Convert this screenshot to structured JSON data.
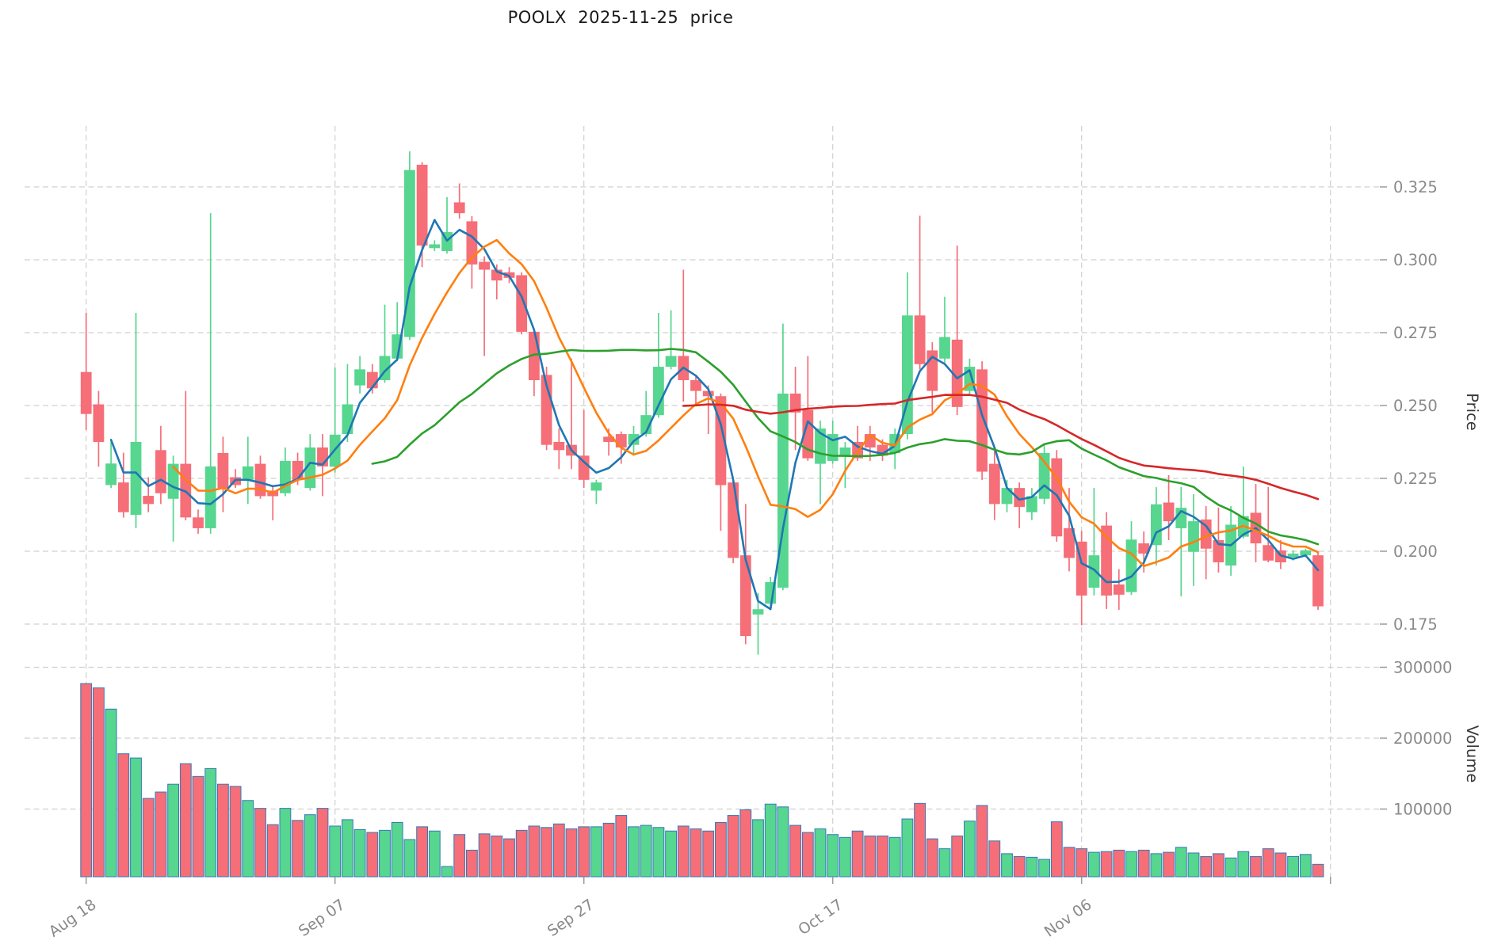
{
  "header": {
    "title": "POOLX  2025-11-25  price"
  },
  "axes": {
    "price_label": "Price",
    "volume_label": "Volume"
  },
  "colors": {
    "up": "#56d68f",
    "down": "#f56e78",
    "volume_edge": "#3579b8",
    "grid": "#d0d0d0",
    "tick_text": "#8a8a8a",
    "axis_label_text": "#3a3a3a",
    "ma_colors": [
      "#1f77b4",
      "#ff7f0e",
      "#2ca02c",
      "#d62728"
    ]
  },
  "chart_data": {
    "type": "candlestick",
    "title": "POOLX  2025-11-25  price",
    "panes": [
      "price",
      "volume"
    ],
    "ylabel_price": "Price",
    "ylabel_volume": "Volume",
    "grid": true,
    "price_tick_labels": [
      "0.175",
      "0.200",
      "0.225",
      "0.250",
      "0.275",
      "0.300",
      "0.325"
    ],
    "price_ticks": [
      0.175,
      0.2,
      0.225,
      0.25,
      0.275,
      0.3,
      0.325
    ],
    "volume_tick_labels": [
      "100000",
      "200000",
      "300000"
    ],
    "volume_ticks": [
      100000,
      200000,
      300000
    ],
    "x_tick_labels": [
      "Aug 18",
      "Sep 07",
      "Sep 27",
      "Oct 17",
      "Nov 06"
    ],
    "x_tick_indices": [
      0,
      20,
      40,
      60,
      80
    ],
    "unlabeled_gridline_index": 100,
    "price_ylim": [
      0.156,
      0.346
    ],
    "volume_ylim": [
      0,
      307000
    ],
    "moving_averages": [
      {
        "name": "SMA-3",
        "window": 3,
        "color": "#1f77b4"
      },
      {
        "name": "SMA-8",
        "window": 8,
        "color": "#ff7f0e"
      },
      {
        "name": "SMA-24",
        "window": 24,
        "color": "#2ca02c"
      },
      {
        "name": "SMA-49",
        "window": 49,
        "color": "#d62728"
      }
    ],
    "dates": [
      "2025-08-18",
      "2025-08-19",
      "2025-08-20",
      "2025-08-21",
      "2025-08-22",
      "2025-08-23",
      "2025-08-24",
      "2025-08-25",
      "2025-08-26",
      "2025-08-27",
      "2025-08-28",
      "2025-08-29",
      "2025-08-30",
      "2025-08-31",
      "2025-09-01",
      "2025-09-02",
      "2025-09-03",
      "2025-09-04",
      "2025-09-05",
      "2025-09-06",
      "2025-09-07",
      "2025-09-08",
      "2025-09-09",
      "2025-09-10",
      "2025-09-11",
      "2025-09-12",
      "2025-09-13",
      "2025-09-14",
      "2025-09-15",
      "2025-09-16",
      "2025-09-17",
      "2025-09-18",
      "2025-09-19",
      "2025-09-20",
      "2025-09-21",
      "2025-09-22",
      "2025-09-23",
      "2025-09-24",
      "2025-09-25",
      "2025-09-26",
      "2025-09-27",
      "2025-09-28",
      "2025-09-29",
      "2025-09-30",
      "2025-10-01",
      "2025-10-02",
      "2025-10-03",
      "2025-10-04",
      "2025-10-05",
      "2025-10-06",
      "2025-10-07",
      "2025-10-08",
      "2025-10-09",
      "2025-10-10",
      "2025-10-11",
      "2025-10-12",
      "2025-10-13",
      "2025-10-14",
      "2025-10-15",
      "2025-10-16",
      "2025-10-17",
      "2025-10-18",
      "2025-10-19",
      "2025-10-20",
      "2025-10-21",
      "2025-10-22",
      "2025-10-23",
      "2025-10-24",
      "2025-10-25",
      "2025-10-26",
      "2025-10-27",
      "2025-10-28",
      "2025-10-29",
      "2025-10-30",
      "2025-10-31",
      "2025-11-01",
      "2025-11-02",
      "2025-11-03",
      "2025-11-04",
      "2025-11-05",
      "2025-11-06",
      "2025-11-07",
      "2025-11-08",
      "2025-11-09",
      "2025-11-10",
      "2025-11-11",
      "2025-11-12",
      "2025-11-13",
      "2025-11-14",
      "2025-11-15",
      "2025-11-16",
      "2025-11-17",
      "2025-11-18",
      "2025-11-19",
      "2025-11-20",
      "2025-11-21",
      "2025-11-22",
      "2025-11-23",
      "2025-11-24",
      "2025-11-25"
    ],
    "open": [
      0.2615,
      0.2504,
      0.2227,
      0.2236,
      0.2125,
      0.219,
      0.2347,
      0.218,
      0.23,
      0.2116,
      0.2079,
      0.2337,
      0.2254,
      0.2245,
      0.23,
      0.2208,
      0.2199,
      0.231,
      0.2217,
      0.2356,
      0.229,
      0.2402,
      0.2569,
      0.2615,
      0.2587,
      0.2661,
      0.2735,
      0.3326,
      0.304,
      0.303,
      0.3197,
      0.3132,
      0.2993,
      0.2966,
      0.2957,
      0.2947,
      0.2753,
      0.2605,
      0.2375,
      0.2365,
      0.2328,
      0.2208,
      0.2393,
      0.2402,
      0.2365,
      0.2402,
      0.2467,
      0.2633,
      0.267,
      0.2587,
      0.255,
      0.2532,
      0.2236,
      0.1986,
      0.1783,
      0.182,
      0.1875,
      0.2541,
      0.2485,
      0.23,
      0.231,
      0.2328,
      0.2375,
      0.2402,
      0.2365,
      0.2337,
      0.2402,
      0.2809,
      0.2689,
      0.2661,
      0.2726,
      0.255,
      0.2624,
      0.23,
      0.2162,
      0.2217,
      0.2134,
      0.218,
      0.2319,
      0.2079,
      0.2033,
      0.1875,
      0.2088,
      0.1886,
      0.186,
      0.2027,
      0.2021,
      0.2167,
      0.2079,
      0.1998,
      0.2109,
      0.2038,
      0.1951,
      0.205,
      0.2132,
      0.2021,
      0.2003,
      0.198,
      0.1986,
      0.1986
    ],
    "high": [
      0.2818,
      0.255,
      0.2375,
      0.2338,
      0.2818,
      0.2254,
      0.243,
      0.2328,
      0.255,
      0.2143,
      0.316,
      0.2393,
      0.2282,
      0.2393,
      0.2328,
      0.2227,
      0.2356,
      0.2338,
      0.2402,
      0.2402,
      0.263,
      0.2642,
      0.267,
      0.2642,
      0.2846,
      0.2855,
      0.3372,
      0.3335,
      0.3067,
      0.3215,
      0.3262,
      0.315,
      0.3012,
      0.2984,
      0.2975,
      0.2957,
      0.2762,
      0.2633,
      0.2421,
      0.2661,
      0.2485,
      0.2245,
      0.2421,
      0.2411,
      0.243,
      0.255,
      0.2818,
      0.2827,
      0.2966,
      0.2605,
      0.2569,
      0.2541,
      0.2254,
      0.2162,
      0.1857,
      0.1912,
      0.2781,
      0.2633,
      0.267,
      0.2448,
      0.2448,
      0.2375,
      0.243,
      0.243,
      0.2384,
      0.2421,
      0.2957,
      0.3151,
      0.2717,
      0.2873,
      0.3049,
      0.2661,
      0.2652,
      0.2347,
      0.2245,
      0.2236,
      0.2217,
      0.2365,
      0.2347,
      0.2217,
      0.207,
      0.2217,
      0.2134,
      0.1939,
      0.2103,
      0.2068,
      0.222,
      0.2261,
      0.222,
      0.2196,
      0.2155,
      0.215,
      0.2155,
      0.229,
      0.2231,
      0.222,
      0.2038,
      0.2003,
      0.2009,
      0.1998
    ],
    "low": [
      0.2416,
      0.229,
      0.2217,
      0.2115,
      0.2079,
      0.2134,
      0.2162,
      0.2033,
      0.2106,
      0.206,
      0.206,
      0.2134,
      0.2217,
      0.2162,
      0.218,
      0.2106,
      0.2189,
      0.2227,
      0.2208,
      0.2189,
      0.227,
      0.2375,
      0.2541,
      0.2541,
      0.2578,
      0.2652,
      0.2725,
      0.2975,
      0.303,
      0.3021,
      0.3141,
      0.2901,
      0.267,
      0.2864,
      0.292,
      0.2744,
      0.2532,
      0.2347,
      0.2282,
      0.2282,
      0.2217,
      0.2162,
      0.2328,
      0.23,
      0.2328,
      0.2393,
      0.2458,
      0.2624,
      0.2513,
      0.2504,
      0.2402,
      0.207,
      0.1959,
      0.1681,
      0.1645,
      0.1811,
      0.1866,
      0.2347,
      0.231,
      0.2162,
      0.23,
      0.2217,
      0.231,
      0.231,
      0.231,
      0.2282,
      0.2384,
      0.2624,
      0.2476,
      0.2642,
      0.2467,
      0.2532,
      0.2245,
      0.2107,
      0.2134,
      0.2079,
      0.2107,
      0.2162,
      0.2033,
      0.1931,
      0.1746,
      0.1848,
      0.1802,
      0.1799,
      0.185,
      0.1927,
      0.1951,
      0.2038,
      0.1845,
      0.1881,
      0.1904,
      0.1927,
      0.1916,
      0.2044,
      0.1962,
      0.1962,
      0.1939,
      0.1968,
      0.198,
      0.1799
    ],
    "close": [
      0.2471,
      0.2375,
      0.2301,
      0.2134,
      0.2375,
      0.2162,
      0.2199,
      0.23,
      0.2116,
      0.2079,
      0.2291,
      0.2217,
      0.2227,
      0.2291,
      0.2189,
      0.2189,
      0.231,
      0.2245,
      0.2356,
      0.2291,
      0.24,
      0.2504,
      0.2624,
      0.2559,
      0.267,
      0.2744,
      0.3308,
      0.3049,
      0.3053,
      0.3095,
      0.316,
      0.2984,
      0.2966,
      0.2929,
      0.2938,
      0.2753,
      0.2587,
      0.2365,
      0.2347,
      0.2328,
      0.2245,
      0.2236,
      0.2375,
      0.2356,
      0.2402,
      0.2467,
      0.2633,
      0.267,
      0.2587,
      0.255,
      0.2532,
      0.2227,
      0.1977,
      0.1709,
      0.1801,
      0.1894,
      0.2541,
      0.2476,
      0.2319,
      0.2421,
      0.2402,
      0.2356,
      0.2319,
      0.2356,
      0.2328,
      0.2402,
      0.2809,
      0.2642,
      0.255,
      0.2735,
      0.2495,
      0.2633,
      0.2273,
      0.2162,
      0.2217,
      0.2152,
      0.2189,
      0.2337,
      0.2051,
      0.1977,
      0.1848,
      0.1986,
      0.1848,
      0.1851,
      0.204,
      0.1992,
      0.2161,
      0.2103,
      0.2149,
      0.2103,
      0.2009,
      0.1962,
      0.2091,
      0.212,
      0.2027,
      0.1968,
      0.1962,
      0.1992,
      0.2003,
      0.1811
    ],
    "volume": [
      277000,
      271000,
      241000,
      178000,
      172000,
      115000,
      124000,
      135000,
      164000,
      146000,
      157000,
      135000,
      132000,
      112000,
      101000,
      78000,
      101000,
      84000,
      92000,
      101000,
      76000,
      85000,
      71000,
      67000,
      70000,
      81000,
      57000,
      75000,
      69000,
      19000,
      64000,
      42000,
      65000,
      62000,
      58000,
      70000,
      76000,
      74000,
      79000,
      72000,
      75000,
      75000,
      80000,
      91000,
      75000,
      77000,
      74000,
      69000,
      76000,
      72000,
      69000,
      81000,
      91000,
      99000,
      85000,
      107000,
      103000,
      77000,
      67000,
      72000,
      64000,
      60000,
      69000,
      62000,
      62000,
      60000,
      86000,
      108000,
      58000,
      44000,
      62000,
      83000,
      105000,
      55000,
      37000,
      33000,
      32000,
      29000,
      82000,
      46000,
      44000,
      39000,
      40000,
      42000,
      40000,
      42000,
      37000,
      39000,
      46000,
      38000,
      33000,
      37000,
      31000,
      40000,
      33000,
      44000,
      38000,
      33000,
      36000,
      22000
    ]
  }
}
